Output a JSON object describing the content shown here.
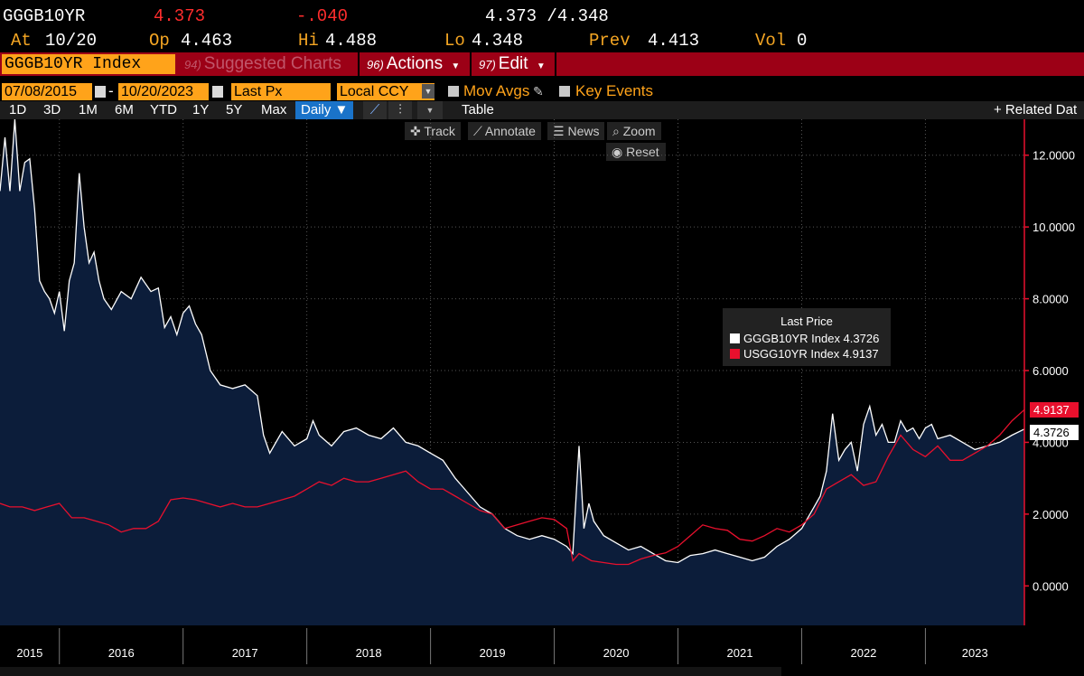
{
  "quote": {
    "ticker": "GGGB10YR",
    "last": "4.373",
    "change": "-.040",
    "bid_ask": "4.373 /4.348",
    "at_label": "At",
    "at_value": "10/20",
    "open_label": "Op",
    "open_value": "4.463",
    "high_label": "Hi",
    "high_value": "4.488",
    "low_label": "Lo",
    "low_value": "4.348",
    "prev_label": "Prev",
    "prev_value": "4.413",
    "vol_label": "Vol",
    "vol_value": "0"
  },
  "titlebar": {
    "security": "GGGB10YR Index",
    "suggested_num": "94)",
    "suggested_label": "Suggested Charts",
    "actions_num": "96)",
    "actions_label": "Actions",
    "edit_num": "97)",
    "edit_label": "Edit"
  },
  "controls": {
    "start_date": "07/08/2015",
    "dash": "-",
    "end_date": "10/20/2023",
    "field": "Last Px",
    "currency": "Local CCY",
    "mov_avgs": "Mov Avgs",
    "key_events": "Key Events"
  },
  "ranges": [
    "1D",
    "3D",
    "1M",
    "6M",
    "YTD",
    "1Y",
    "5Y",
    "Max"
  ],
  "frequency": "Daily ▼",
  "table_label": "Table",
  "related_label": "+ Related Dat",
  "toolbar": {
    "track": "Track",
    "annotate": "Annotate",
    "news": "News",
    "zoom": "Zoom",
    "reset": "Reset"
  },
  "colors": {
    "greek": "#ffffff",
    "us": "#e8102d",
    "area": "#0c1d3a",
    "orange": "#ffa31a",
    "titlebar": "#9c0016"
  },
  "chart_data": {
    "type": "line",
    "title": "",
    "xlabel": "",
    "ylabel": "",
    "x_range": [
      2015.52,
      2023.8
    ],
    "ylim": [
      -1.1,
      13.0
    ],
    "y_ticks": [
      "0.0000",
      "2.0000",
      "4.0000",
      "6.0000",
      "8.0000",
      "10.0000",
      "12.0000"
    ],
    "x_tick_labels": [
      "2015",
      "2016",
      "2017",
      "2018",
      "2019",
      "2020",
      "2021",
      "2022",
      "2023"
    ],
    "legend_title": "Last Price",
    "legend_entries": [
      "GGGB10YR Index 4.3726",
      "USGG10YR Index 4.9137"
    ],
    "last_labels": [
      "4.9137",
      "4.3726"
    ],
    "series": [
      {
        "name": "GGGB10YR Index",
        "last": 4.3726,
        "style": "area",
        "points": [
          [
            2015.52,
            11.0
          ],
          [
            2015.56,
            12.5
          ],
          [
            2015.6,
            11.0
          ],
          [
            2015.64,
            13.0
          ],
          [
            2015.68,
            11.0
          ],
          [
            2015.72,
            11.8
          ],
          [
            2015.76,
            11.9
          ],
          [
            2015.8,
            10.5
          ],
          [
            2015.84,
            8.5
          ],
          [
            2015.88,
            8.2
          ],
          [
            2015.92,
            8.0
          ],
          [
            2015.96,
            7.6
          ],
          [
            2016.0,
            8.2
          ],
          [
            2016.04,
            7.1
          ],
          [
            2016.08,
            8.5
          ],
          [
            2016.12,
            9.0
          ],
          [
            2016.16,
            11.5
          ],
          [
            2016.2,
            10.0
          ],
          [
            2016.24,
            9.0
          ],
          [
            2016.28,
            9.3
          ],
          [
            2016.32,
            8.5
          ],
          [
            2016.36,
            8.0
          ],
          [
            2016.42,
            7.7
          ],
          [
            2016.5,
            8.2
          ],
          [
            2016.58,
            8.0
          ],
          [
            2016.66,
            8.6
          ],
          [
            2016.74,
            8.2
          ],
          [
            2016.8,
            8.3
          ],
          [
            2016.85,
            7.2
          ],
          [
            2016.9,
            7.5
          ],
          [
            2016.95,
            7.0
          ],
          [
            2017.0,
            7.6
          ],
          [
            2017.05,
            7.8
          ],
          [
            2017.1,
            7.3
          ],
          [
            2017.15,
            7.0
          ],
          [
            2017.22,
            6.0
          ],
          [
            2017.3,
            5.6
          ],
          [
            2017.4,
            5.5
          ],
          [
            2017.5,
            5.6
          ],
          [
            2017.6,
            5.3
          ],
          [
            2017.65,
            4.2
          ],
          [
            2017.7,
            3.7
          ],
          [
            2017.8,
            4.3
          ],
          [
            2017.9,
            3.9
          ],
          [
            2018.0,
            4.1
          ],
          [
            2018.05,
            4.6
          ],
          [
            2018.1,
            4.2
          ],
          [
            2018.2,
            3.9
          ],
          [
            2018.3,
            4.3
          ],
          [
            2018.4,
            4.4
          ],
          [
            2018.5,
            4.2
          ],
          [
            2018.6,
            4.1
          ],
          [
            2018.7,
            4.4
          ],
          [
            2018.8,
            4.0
          ],
          [
            2018.9,
            3.9
          ],
          [
            2019.0,
            3.7
          ],
          [
            2019.1,
            3.5
          ],
          [
            2019.2,
            3.0
          ],
          [
            2019.3,
            2.6
          ],
          [
            2019.4,
            2.2
          ],
          [
            2019.5,
            2.0
          ],
          [
            2019.6,
            1.6
          ],
          [
            2019.7,
            1.4
          ],
          [
            2019.8,
            1.3
          ],
          [
            2019.9,
            1.4
          ],
          [
            2020.0,
            1.3
          ],
          [
            2020.1,
            1.1
          ],
          [
            2020.15,
            0.9
          ],
          [
            2020.2,
            3.9
          ],
          [
            2020.24,
            1.6
          ],
          [
            2020.28,
            2.3
          ],
          [
            2020.32,
            1.8
          ],
          [
            2020.4,
            1.4
          ],
          [
            2020.5,
            1.2
          ],
          [
            2020.6,
            1.0
          ],
          [
            2020.7,
            1.1
          ],
          [
            2020.8,
            0.9
          ],
          [
            2020.9,
            0.7
          ],
          [
            2021.0,
            0.65
          ],
          [
            2021.1,
            0.85
          ],
          [
            2021.2,
            0.9
          ],
          [
            2021.3,
            1.0
          ],
          [
            2021.4,
            0.9
          ],
          [
            2021.5,
            0.8
          ],
          [
            2021.6,
            0.7
          ],
          [
            2021.7,
            0.8
          ],
          [
            2021.8,
            1.1
          ],
          [
            2021.9,
            1.3
          ],
          [
            2022.0,
            1.6
          ],
          [
            2022.1,
            2.2
          ],
          [
            2022.15,
            2.5
          ],
          [
            2022.2,
            3.2
          ],
          [
            2022.25,
            4.8
          ],
          [
            2022.3,
            3.5
          ],
          [
            2022.35,
            3.8
          ],
          [
            2022.4,
            4.0
          ],
          [
            2022.45,
            3.2
          ],
          [
            2022.5,
            4.5
          ],
          [
            2022.55,
            5.0
          ],
          [
            2022.6,
            4.2
          ],
          [
            2022.65,
            4.5
          ],
          [
            2022.7,
            4.0
          ],
          [
            2022.75,
            4.0
          ],
          [
            2022.8,
            4.6
          ],
          [
            2022.85,
            4.3
          ],
          [
            2022.9,
            4.4
          ],
          [
            2022.95,
            4.1
          ],
          [
            2023.0,
            4.4
          ],
          [
            2023.05,
            4.5
          ],
          [
            2023.1,
            4.1
          ],
          [
            2023.2,
            4.2
          ],
          [
            2023.3,
            4.0
          ],
          [
            2023.4,
            3.8
          ],
          [
            2023.5,
            3.9
          ],
          [
            2023.6,
            4.0
          ],
          [
            2023.7,
            4.2
          ],
          [
            2023.8,
            4.37
          ]
        ]
      },
      {
        "name": "USGG10YR Index",
        "last": 4.9137,
        "style": "line",
        "points": [
          [
            2015.52,
            2.3
          ],
          [
            2015.6,
            2.2
          ],
          [
            2015.7,
            2.2
          ],
          [
            2015.8,
            2.1
          ],
          [
            2015.9,
            2.2
          ],
          [
            2016.0,
            2.3
          ],
          [
            2016.1,
            1.9
          ],
          [
            2016.2,
            1.9
          ],
          [
            2016.3,
            1.8
          ],
          [
            2016.4,
            1.7
          ],
          [
            2016.5,
            1.5
          ],
          [
            2016.6,
            1.6
          ],
          [
            2016.7,
            1.6
          ],
          [
            2016.8,
            1.8
          ],
          [
            2016.9,
            2.4
          ],
          [
            2017.0,
            2.45
          ],
          [
            2017.1,
            2.4
          ],
          [
            2017.2,
            2.3
          ],
          [
            2017.3,
            2.2
          ],
          [
            2017.4,
            2.3
          ],
          [
            2017.5,
            2.2
          ],
          [
            2017.6,
            2.2
          ],
          [
            2017.7,
            2.3
          ],
          [
            2017.8,
            2.4
          ],
          [
            2017.9,
            2.5
          ],
          [
            2018.0,
            2.7
          ],
          [
            2018.1,
            2.9
          ],
          [
            2018.2,
            2.8
          ],
          [
            2018.3,
            3.0
          ],
          [
            2018.4,
            2.9
          ],
          [
            2018.5,
            2.9
          ],
          [
            2018.6,
            3.0
          ],
          [
            2018.7,
            3.1
          ],
          [
            2018.8,
            3.2
          ],
          [
            2018.9,
            2.9
          ],
          [
            2019.0,
            2.7
          ],
          [
            2019.1,
            2.7
          ],
          [
            2019.2,
            2.5
          ],
          [
            2019.3,
            2.3
          ],
          [
            2019.4,
            2.1
          ],
          [
            2019.5,
            2.0
          ],
          [
            2019.6,
            1.6
          ],
          [
            2019.7,
            1.7
          ],
          [
            2019.8,
            1.8
          ],
          [
            2019.9,
            1.9
          ],
          [
            2020.0,
            1.85
          ],
          [
            2020.1,
            1.6
          ],
          [
            2020.15,
            0.7
          ],
          [
            2020.2,
            0.9
          ],
          [
            2020.3,
            0.7
          ],
          [
            2020.4,
            0.65
          ],
          [
            2020.5,
            0.6
          ],
          [
            2020.6,
            0.6
          ],
          [
            2020.7,
            0.75
          ],
          [
            2020.8,
            0.85
          ],
          [
            2020.9,
            0.92
          ],
          [
            2021.0,
            1.1
          ],
          [
            2021.1,
            1.4
          ],
          [
            2021.2,
            1.7
          ],
          [
            2021.3,
            1.6
          ],
          [
            2021.4,
            1.55
          ],
          [
            2021.5,
            1.3
          ],
          [
            2021.6,
            1.25
          ],
          [
            2021.7,
            1.4
          ],
          [
            2021.8,
            1.6
          ],
          [
            2021.9,
            1.5
          ],
          [
            2022.0,
            1.7
          ],
          [
            2022.1,
            2.0
          ],
          [
            2022.2,
            2.7
          ],
          [
            2022.3,
            2.9
          ],
          [
            2022.4,
            3.1
          ],
          [
            2022.5,
            2.8
          ],
          [
            2022.6,
            2.9
          ],
          [
            2022.7,
            3.6
          ],
          [
            2022.8,
            4.2
          ],
          [
            2022.9,
            3.8
          ],
          [
            2023.0,
            3.6
          ],
          [
            2023.1,
            3.9
          ],
          [
            2023.2,
            3.5
          ],
          [
            2023.3,
            3.5
          ],
          [
            2023.4,
            3.7
          ],
          [
            2023.5,
            3.9
          ],
          [
            2023.6,
            4.2
          ],
          [
            2023.7,
            4.6
          ],
          [
            2023.8,
            4.91
          ]
        ]
      }
    ]
  }
}
